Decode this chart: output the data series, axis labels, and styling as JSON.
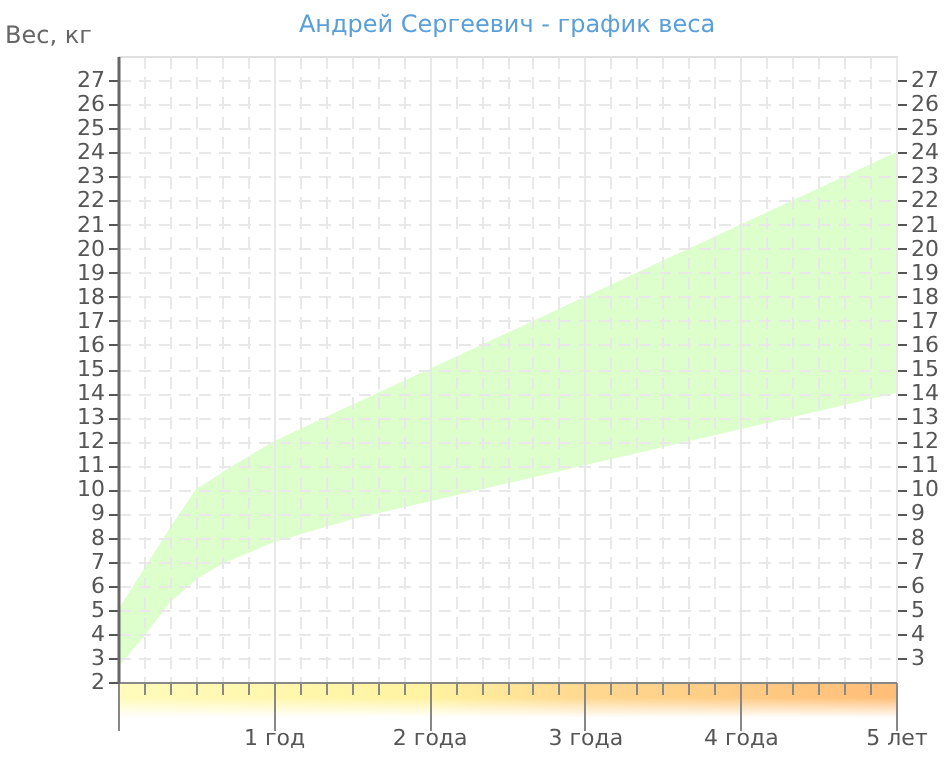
{
  "chart_data": {
    "type": "area",
    "title": "Андрей Сергеевич - график веса",
    "ylabel": "Вес, кг",
    "x": [
      0,
      0.1667,
      0.3333,
      0.5,
      0.6667,
      1,
      1.5,
      2,
      3,
      4,
      5
    ],
    "xlim": [
      0,
      5
    ],
    "xticks": [
      {
        "value": 0,
        "label": null
      },
      {
        "value": 0.1667,
        "label": null
      },
      {
        "value": 0.3333,
        "label": null
      },
      {
        "value": 0.5,
        "label": null
      },
      {
        "value": 0.6667,
        "label": null
      },
      {
        "value": 0.8333,
        "label": null
      },
      {
        "value": 1,
        "label": "1 год"
      },
      {
        "value": 1.1667,
        "label": null
      },
      {
        "value": 1.3333,
        "label": null
      },
      {
        "value": 1.5,
        "label": null
      },
      {
        "value": 1.6667,
        "label": null
      },
      {
        "value": 1.8333,
        "label": null
      },
      {
        "value": 2,
        "label": "2 года"
      },
      {
        "value": 2.1667,
        "label": null
      },
      {
        "value": 2.3333,
        "label": null
      },
      {
        "value": 2.5,
        "label": null
      },
      {
        "value": 2.6667,
        "label": null
      },
      {
        "value": 2.8333,
        "label": null
      },
      {
        "value": 3,
        "label": "3 года"
      },
      {
        "value": 3.1667,
        "label": null
      },
      {
        "value": 3.3333,
        "label": null
      },
      {
        "value": 3.5,
        "label": null
      },
      {
        "value": 3.6667,
        "label": null
      },
      {
        "value": 3.8333,
        "label": null
      },
      {
        "value": 4,
        "label": "4 года"
      },
      {
        "value": 4.1667,
        "label": null
      },
      {
        "value": 4.3333,
        "label": null
      },
      {
        "value": 4.5,
        "label": null
      },
      {
        "value": 4.6667,
        "label": null
      },
      {
        "value": 4.8333,
        "label": null
      },
      {
        "value": 5,
        "label": "5 лет"
      }
    ],
    "ylim": [
      2,
      28
    ],
    "yticks": [
      2,
      3,
      4,
      5,
      6,
      7,
      8,
      9,
      10,
      11,
      12,
      13,
      14,
      15,
      16,
      17,
      18,
      19,
      20,
      21,
      22,
      23,
      24,
      25,
      26,
      27
    ],
    "y2lim": [
      2,
      28
    ],
    "y2ticks": [
      3,
      4,
      5,
      6,
      7,
      8,
      9,
      10,
      11,
      12,
      13,
      14,
      15,
      16,
      17,
      18,
      19,
      20,
      21,
      22,
      23,
      24,
      25,
      26,
      27
    ],
    "grid": true,
    "series": [
      {
        "color": "#ddffcc",
        "values": [
          5.0,
          6.7,
          8.4,
          10.0,
          10.7,
          12.0,
          13.5,
          15.0,
          18.0,
          21.0,
          24.0
        ]
      },
      {
        "color": "#ffffff",
        "values": [
          2.6,
          3.9,
          5.3,
          6.25,
          6.9,
          7.8,
          8.75,
          9.5,
          11.0,
          12.5,
          14.0
        ]
      }
    ]
  }
}
